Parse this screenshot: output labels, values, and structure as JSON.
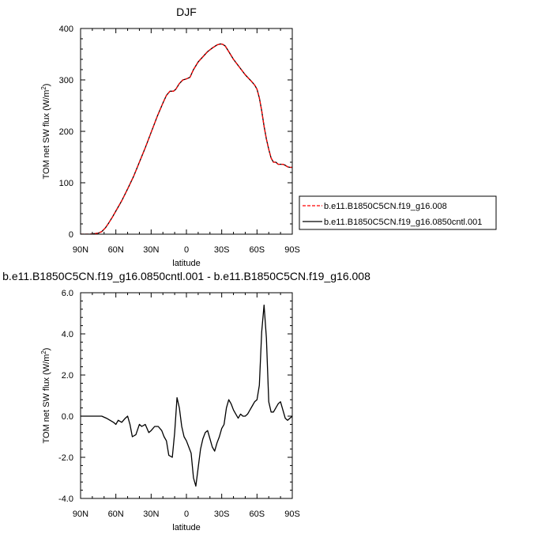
{
  "chart_data": [
    {
      "type": "line",
      "title": "DJF",
      "xlabel": "latitude",
      "ylabel": "TOM net SW flux (W/m²)",
      "ylabel_main": "TOM net SW flux (W/m",
      "ylabel_sup": "2",
      "ylabel_end": ")",
      "xlim": [
        90,
        -90
      ],
      "ylim": [
        0,
        400
      ],
      "xticks": [
        90,
        60,
        30,
        0,
        -30,
        -60,
        -90
      ],
      "xticklabels": [
        "90N",
        "60N",
        "30N",
        "0",
        "30S",
        "60S",
        "90S"
      ],
      "yticks": [
        0,
        100,
        200,
        300,
        400
      ],
      "yticklabels": [
        "0",
        "100",
        "200",
        "300",
        "400"
      ],
      "legend_position": "right",
      "series": [
        {
          "name": "b.e11.B1850C5CN.f19_g16.008",
          "color": "#ff0000",
          "dash": "dashed",
          "x": [
            90,
            82,
            75,
            72,
            69,
            66,
            63,
            60,
            55,
            50,
            45,
            40,
            35,
            30,
            25,
            20,
            17,
            14,
            11,
            9,
            6,
            3,
            0,
            -3,
            -6,
            -10,
            -14,
            -18,
            -22,
            -26,
            -29,
            -31,
            -33,
            -36,
            -40,
            -45,
            -50,
            -55,
            -58,
            -60,
            -62,
            -64,
            -66,
            -68,
            -70,
            -72,
            -74,
            -76,
            -78,
            -80,
            -82,
            -84,
            -86,
            -88,
            -90
          ],
          "y": [
            0,
            0,
            2,
            5,
            12,
            22,
            33,
            45,
            65,
            88,
            112,
            140,
            168,
            198,
            228,
            255,
            270,
            278,
            278,
            282,
            293,
            300,
            302,
            305,
            320,
            335,
            345,
            355,
            362,
            368,
            370,
            369,
            366,
            355,
            340,
            325,
            310,
            298,
            290,
            282,
            265,
            240,
            210,
            185,
            165,
            148,
            140,
            140,
            136,
            136,
            136,
            134,
            131,
            130,
            130
          ]
        },
        {
          "name": "b.e11.B1850C5CN.f19_g16.0850cntl.001",
          "color": "#000000",
          "dash": "solid",
          "x": [
            90,
            82,
            75,
            72,
            69,
            66,
            63,
            60,
            55,
            50,
            45,
            40,
            35,
            30,
            25,
            20,
            17,
            14,
            11,
            9,
            6,
            3,
            0,
            -3,
            -6,
            -10,
            -14,
            -18,
            -22,
            -26,
            -29,
            -31,
            -33,
            -36,
            -40,
            -45,
            -50,
            -55,
            -58,
            -60,
            -62,
            -64,
            -66,
            -68,
            -70,
            -72,
            -74,
            -76,
            -78,
            -80,
            -82,
            -84,
            -86,
            -88,
            -90
          ],
          "y": [
            0,
            0,
            2,
            5,
            12,
            22,
            33,
            45,
            65,
            88,
            112,
            140,
            168,
            198,
            228,
            255,
            270,
            278,
            278,
            282,
            293,
            300,
            302,
            305,
            320,
            335,
            345,
            355,
            362,
            368,
            370,
            369,
            366,
            355,
            340,
            325,
            310,
            298,
            290,
            282,
            265,
            240,
            210,
            185,
            165,
            148,
            140,
            140,
            136,
            136,
            136,
            134,
            131,
            130,
            130
          ]
        }
      ]
    },
    {
      "type": "line",
      "title": "b.e11.B1850C5CN.f19_g16.0850cntl.001 - b.e11.B1850C5CN.f19_g16.008",
      "xlabel": "latitude",
      "ylabel": "TOM net SW flux (W/m²)",
      "ylabel_main": "TOM net SW flux (W/m",
      "ylabel_sup": "2",
      "ylabel_end": ")",
      "xlim": [
        90,
        -90
      ],
      "ylim": [
        -4,
        6
      ],
      "xticks": [
        90,
        60,
        30,
        0,
        -30,
        -60,
        -90
      ],
      "xticklabels": [
        "90N",
        "60N",
        "30N",
        "0",
        "30S",
        "60S",
        "90S"
      ],
      "yticks": [
        -4,
        -2,
        0,
        2,
        4,
        6
      ],
      "yticklabels": [
        "-4.0",
        "-2.0",
        "0.0",
        "2.0",
        "4.0",
        "6.0"
      ],
      "series": [
        {
          "color": "#000000",
          "dash": "solid",
          "x": [
            90,
            80,
            72,
            68,
            65,
            62,
            60,
            58,
            55,
            52,
            50,
            48,
            46,
            43,
            40,
            38,
            35,
            32,
            30,
            27,
            24,
            21,
            19,
            17,
            15,
            12,
            10,
            8,
            6,
            4,
            2,
            0,
            -2,
            -4,
            -6,
            -8,
            -10,
            -12,
            -14,
            -16,
            -18,
            -20,
            -22,
            -24,
            -26,
            -28,
            -30,
            -32,
            -34,
            -36,
            -38,
            -40,
            -42,
            -44,
            -46,
            -48,
            -50,
            -52,
            -54,
            -56,
            -58,
            -60,
            -62,
            -64,
            -66,
            -68,
            -70,
            -72,
            -74,
            -76,
            -78,
            -80,
            -82,
            -84,
            -86,
            -88,
            -90
          ],
          "y": [
            0,
            0,
            0,
            -0.1,
            -0.2,
            -0.3,
            -0.4,
            -0.2,
            -0.3,
            -0.1,
            0,
            -0.4,
            -1.0,
            -0.9,
            -0.4,
            -0.5,
            -0.4,
            -0.8,
            -0.7,
            -0.5,
            -0.5,
            -0.7,
            -1.0,
            -1.2,
            -1.9,
            -2.0,
            -0.8,
            0.9,
            0.4,
            -0.5,
            -1.0,
            -1.2,
            -1.5,
            -1.8,
            -3.0,
            -3.4,
            -2.5,
            -1.6,
            -1.1,
            -0.8,
            -0.7,
            -1.1,
            -1.5,
            -1.7,
            -1.3,
            -1.0,
            -0.6,
            -0.4,
            0.4,
            0.8,
            0.6,
            0.3,
            0.1,
            -0.1,
            0.1,
            0.0,
            0.0,
            0.1,
            0.3,
            0.5,
            0.7,
            0.8,
            1.5,
            4.1,
            5.4,
            3.8,
            0.7,
            0.2,
            0.2,
            0.4,
            0.6,
            0.7,
            0.3,
            -0.1,
            -0.2,
            -0.1,
            0.0
          ]
        }
      ]
    }
  ]
}
